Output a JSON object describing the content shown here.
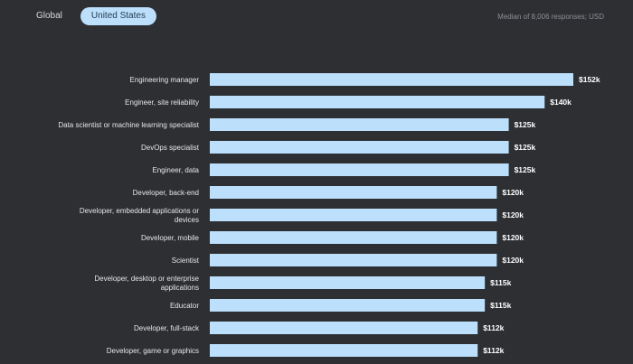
{
  "tabs": [
    {
      "label": "Global",
      "active": false
    },
    {
      "label": "United States",
      "active": true
    }
  ],
  "subtitle": "Median of 8,006 responses; USD",
  "colors": {
    "bar": "#bcdffb",
    "background": "#2d2f33"
  },
  "chart_data": {
    "type": "bar",
    "orientation": "horizontal",
    "categories": [
      "Engineering manager",
      "Engineer, site reliability",
      "Data scientist or machine learning specialist",
      "DevOps specialist",
      "Engineer, data",
      "Developer, back-end",
      "Developer, embedded applications or devices",
      "Developer, mobile",
      "Scientist",
      "Developer, desktop or enterprise applications",
      "Educator",
      "Developer, full-stack",
      "Developer, game or graphics"
    ],
    "category_lines": [
      [
        "Engineering manager"
      ],
      [
        "Engineer, site reliability"
      ],
      [
        "Data scientist or machine learning specialist"
      ],
      [
        "DevOps specialist"
      ],
      [
        "Engineer, data"
      ],
      [
        "Developer, back-end"
      ],
      [
        "Developer, embedded applications or",
        "devices"
      ],
      [
        "Developer, mobile"
      ],
      [
        "Scientist"
      ],
      [
        "Developer, desktop or enterprise",
        "applications"
      ],
      [
        "Educator"
      ],
      [
        "Developer, full-stack"
      ],
      [
        "Developer, game or graphics"
      ]
    ],
    "values": [
      152000,
      140000,
      125000,
      125000,
      125000,
      120000,
      120000,
      120000,
      120000,
      115000,
      115000,
      112000,
      112000
    ],
    "value_labels": [
      "$152k",
      "$140k",
      "$125k",
      "$125k",
      "$125k",
      "$120k",
      "$120k",
      "$120k",
      "$120k",
      "$115k",
      "$115k",
      "$112k",
      "$112k"
    ],
    "xlim": [
      0,
      152000
    ],
    "grid": false,
    "legend": "none"
  }
}
